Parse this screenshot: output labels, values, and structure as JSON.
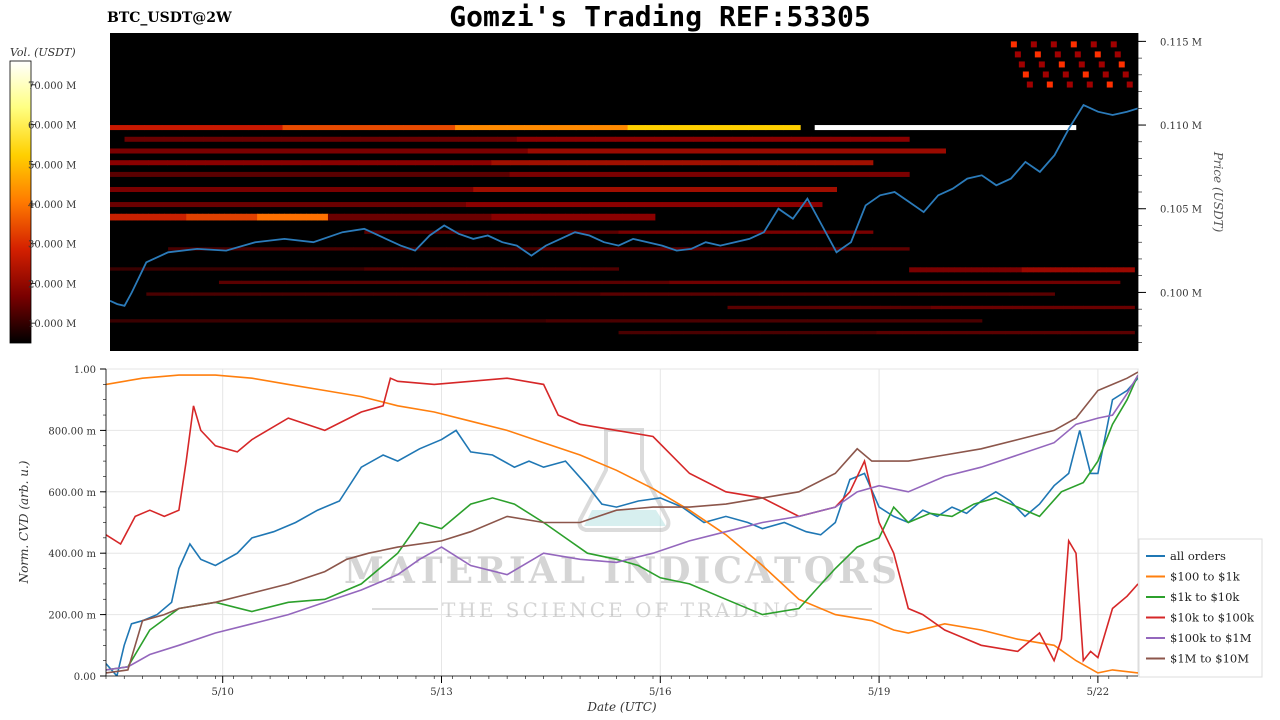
{
  "header": {
    "title": "Gomzi's Trading REF:53305",
    "symbol": "BTC_USDT@2W"
  },
  "colorbar": {
    "label": "Vol. (USDT)",
    "ticks": [
      "10.000 M",
      "20.000 M",
      "30.000 M",
      "40.000 M",
      "50.000 M",
      "60.000 M",
      "70.000 M"
    ],
    "range": [
      5000000,
      76000000
    ],
    "colormap": [
      "#000000",
      "#7a0000",
      "#d42000",
      "#ff7a00",
      "#ffd000",
      "#ffff80",
      "#ffffff"
    ]
  },
  "watermark": {
    "line1": "MATERIAL INDICATORS",
    "line2": "THE SCIENCE OF TRADING"
  },
  "chart_data": [
    {
      "type": "heatmap",
      "ylabel": "Price (USDT)",
      "ylim": [
        0.0965,
        0.1155
      ],
      "xlim": [
        "2025-05-08T09:00",
        "2025-05-22T12:00"
      ],
      "yticks": [
        "0.100 M",
        "0.105 M",
        "0.110 M",
        "0.115 M"
      ],
      "ytick_values": [
        0.1,
        0.105,
        0.11,
        0.115
      ],
      "line_color": "#2b7bba",
      "price_series": {
        "name": "price",
        "x_days": [
          0,
          0.1,
          0.2,
          0.3,
          0.5,
          0.8,
          1.2,
          1.6,
          2.0,
          2.4,
          2.8,
          3.2,
          3.5,
          3.8,
          4.0,
          4.2,
          4.4,
          4.6,
          4.8,
          5.0,
          5.2,
          5.4,
          5.6,
          5.8,
          6.0,
          6.2,
          6.4,
          6.6,
          6.8,
          7.0,
          7.2,
          7.4,
          7.6,
          7.8,
          8.0,
          8.2,
          8.4,
          8.6,
          8.8,
          9.0,
          9.2,
          9.4,
          9.6,
          9.8,
          10.0,
          10.2,
          10.4,
          10.6,
          10.8,
          11.0,
          11.2,
          11.4,
          11.6,
          11.8,
          12.0,
          12.2,
          12.4,
          12.6,
          12.8,
          13.0,
          13.2,
          13.4,
          13.6,
          13.8,
          14.0,
          14.15
        ],
        "y": [
          0.0995,
          0.0993,
          0.0992,
          0.1,
          0.1018,
          0.1024,
          0.1026,
          0.1025,
          0.103,
          0.1032,
          0.103,
          0.1036,
          0.1038,
          0.1032,
          0.1028,
          0.1025,
          0.1034,
          0.104,
          0.1035,
          0.1032,
          0.1034,
          0.103,
          0.1028,
          0.1022,
          0.1028,
          0.1032,
          0.1036,
          0.1034,
          0.103,
          0.1028,
          0.1032,
          0.103,
          0.1028,
          0.1025,
          0.1026,
          0.103,
          0.1028,
          0.103,
          0.1032,
          0.1036,
          0.105,
          0.1044,
          0.1056,
          0.104,
          0.1024,
          0.103,
          0.1052,
          0.1058,
          0.106,
          0.1054,
          0.1048,
          0.1058,
          0.1062,
          0.1068,
          0.107,
          0.1064,
          0.1068,
          0.1078,
          0.1072,
          0.1082,
          0.1098,
          0.1112,
          0.1108,
          0.1106,
          0.1108,
          0.111
        ]
      }
    },
    {
      "type": "line",
      "xlabel": "Date (UTC)",
      "ylabel": "Norm. CVD (arb. u.)",
      "xlim_days": [
        0,
        14.15
      ],
      "ylim": [
        0,
        1
      ],
      "xticks": [
        "5/10",
        "5/13",
        "5/16",
        "5/19",
        "5/22"
      ],
      "xtick_days": [
        1.6,
        4.6,
        7.6,
        10.6,
        13.6
      ],
      "yticks": [
        "0.00",
        "200.00 m",
        "400.00 m",
        "600.00 m",
        "800.00 m",
        "1.00"
      ],
      "ytick_values": [
        0,
        0.2,
        0.4,
        0.6,
        0.8,
        1.0
      ],
      "grid": true,
      "legend_position": "right",
      "series": [
        {
          "name": "all orders",
          "color": "#1f77b4",
          "x": [
            0,
            0.15,
            0.25,
            0.35,
            0.5,
            0.7,
            0.9,
            1.0,
            1.15,
            1.3,
            1.5,
            1.8,
            2.0,
            2.3,
            2.6,
            2.9,
            3.2,
            3.5,
            3.8,
            4.0,
            4.3,
            4.6,
            4.8,
            5.0,
            5.3,
            5.6,
            5.8,
            6.0,
            6.3,
            6.6,
            6.8,
            7.0,
            7.3,
            7.6,
            7.9,
            8.2,
            8.5,
            8.8,
            9.0,
            9.3,
            9.6,
            9.8,
            10.0,
            10.2,
            10.4,
            10.6,
            10.8,
            11.0,
            11.2,
            11.4,
            11.6,
            11.8,
            12.0,
            12.2,
            12.4,
            12.6,
            12.8,
            13.0,
            13.2,
            13.35,
            13.5,
            13.6,
            13.8,
            14.0,
            14.15
          ],
          "y": [
            0.04,
            0.0,
            0.1,
            0.17,
            0.18,
            0.2,
            0.24,
            0.35,
            0.43,
            0.38,
            0.36,
            0.4,
            0.45,
            0.47,
            0.5,
            0.54,
            0.57,
            0.68,
            0.72,
            0.7,
            0.74,
            0.77,
            0.8,
            0.73,
            0.72,
            0.68,
            0.7,
            0.68,
            0.7,
            0.62,
            0.56,
            0.55,
            0.57,
            0.58,
            0.55,
            0.5,
            0.52,
            0.5,
            0.48,
            0.5,
            0.47,
            0.46,
            0.5,
            0.64,
            0.66,
            0.55,
            0.52,
            0.5,
            0.54,
            0.52,
            0.55,
            0.53,
            0.57,
            0.6,
            0.57,
            0.52,
            0.56,
            0.62,
            0.66,
            0.8,
            0.66,
            0.66,
            0.9,
            0.93,
            0.97
          ]
        },
        {
          "name": "$100 to $1k",
          "color": "#ff7f0e",
          "x": [
            0,
            0.5,
            1.0,
            1.5,
            2.0,
            2.5,
            3.0,
            3.5,
            4.0,
            4.5,
            5.0,
            5.5,
            6.0,
            6.5,
            7.0,
            7.5,
            8.0,
            8.5,
            9.0,
            9.5,
            10.0,
            10.5,
            10.8,
            11.0,
            11.5,
            12.0,
            12.5,
            13.0,
            13.3,
            13.6,
            13.8,
            14.15
          ],
          "y": [
            0.95,
            0.97,
            0.98,
            0.98,
            0.97,
            0.95,
            0.93,
            0.91,
            0.88,
            0.86,
            0.83,
            0.8,
            0.76,
            0.72,
            0.67,
            0.61,
            0.54,
            0.46,
            0.36,
            0.25,
            0.2,
            0.18,
            0.15,
            0.14,
            0.17,
            0.15,
            0.12,
            0.1,
            0.05,
            0.01,
            0.02,
            0.01
          ]
        },
        {
          "name": "$1k to $10k",
          "color": "#2ca02c",
          "x": [
            0,
            0.3,
            0.6,
            1.0,
            1.5,
            2.0,
            2.5,
            3.0,
            3.5,
            4.0,
            4.3,
            4.6,
            5.0,
            5.3,
            5.6,
            6.0,
            6.3,
            6.6,
            7.0,
            7.3,
            7.6,
            8.0,
            8.5,
            9.0,
            9.5,
            10.0,
            10.3,
            10.6,
            10.8,
            11.0,
            11.3,
            11.6,
            11.9,
            12.2,
            12.5,
            12.8,
            13.1,
            13.4,
            13.6,
            13.8,
            14.0,
            14.15
          ],
          "y": [
            0.02,
            0.03,
            0.15,
            0.22,
            0.24,
            0.21,
            0.24,
            0.25,
            0.3,
            0.4,
            0.5,
            0.48,
            0.56,
            0.58,
            0.56,
            0.5,
            0.45,
            0.4,
            0.38,
            0.36,
            0.32,
            0.3,
            0.25,
            0.2,
            0.22,
            0.35,
            0.42,
            0.45,
            0.55,
            0.5,
            0.53,
            0.52,
            0.56,
            0.58,
            0.55,
            0.52,
            0.6,
            0.63,
            0.7,
            0.82,
            0.9,
            0.98
          ]
        },
        {
          "name": "$10k to $100k",
          "color": "#d62728",
          "x": [
            0,
            0.2,
            0.4,
            0.6,
            0.8,
            1.0,
            1.1,
            1.2,
            1.3,
            1.5,
            1.8,
            2.0,
            2.5,
            3.0,
            3.5,
            3.8,
            3.9,
            4.0,
            4.5,
            5.0,
            5.5,
            6.0,
            6.2,
            6.5,
            7.0,
            7.5,
            8.0,
            8.5,
            9.0,
            9.5,
            10.0,
            10.2,
            10.4,
            10.6,
            10.8,
            11.0,
            11.2,
            11.5,
            12.0,
            12.5,
            12.8,
            13.0,
            13.1,
            13.2,
            13.3,
            13.4,
            13.5,
            13.6,
            13.8,
            14.0,
            14.15
          ],
          "y": [
            0.46,
            0.43,
            0.52,
            0.54,
            0.52,
            0.54,
            0.7,
            0.88,
            0.8,
            0.75,
            0.73,
            0.77,
            0.84,
            0.8,
            0.86,
            0.88,
            0.97,
            0.96,
            0.95,
            0.96,
            0.97,
            0.95,
            0.85,
            0.82,
            0.8,
            0.78,
            0.66,
            0.6,
            0.58,
            0.52,
            0.55,
            0.6,
            0.7,
            0.5,
            0.4,
            0.22,
            0.2,
            0.15,
            0.1,
            0.08,
            0.14,
            0.05,
            0.12,
            0.44,
            0.4,
            0.05,
            0.08,
            0.06,
            0.22,
            0.26,
            0.3
          ]
        },
        {
          "name": "$100k to $1M",
          "color": "#9467bd",
          "x": [
            0,
            0.3,
            0.6,
            1.0,
            1.5,
            2.0,
            2.5,
            3.0,
            3.5,
            4.0,
            4.3,
            4.6,
            5.0,
            5.5,
            6.0,
            6.5,
            7.0,
            7.5,
            8.0,
            8.5,
            9.0,
            9.5,
            10.0,
            10.3,
            10.6,
            11.0,
            11.5,
            12.0,
            12.5,
            13.0,
            13.3,
            13.6,
            13.8,
            14.0,
            14.15
          ],
          "y": [
            0.02,
            0.03,
            0.07,
            0.1,
            0.14,
            0.17,
            0.2,
            0.24,
            0.28,
            0.33,
            0.38,
            0.42,
            0.36,
            0.33,
            0.4,
            0.38,
            0.37,
            0.4,
            0.44,
            0.47,
            0.5,
            0.52,
            0.55,
            0.6,
            0.62,
            0.6,
            0.65,
            0.68,
            0.72,
            0.76,
            0.82,
            0.84,
            0.85,
            0.92,
            0.98
          ]
        },
        {
          "name": "$1M to $10M",
          "color": "#8c564b",
          "x": [
            0,
            0.3,
            0.5,
            0.8,
            1.0,
            1.5,
            2.0,
            2.5,
            3.0,
            3.3,
            3.6,
            4.0,
            4.6,
            5.0,
            5.5,
            6.0,
            6.5,
            7.0,
            7.5,
            8.0,
            8.5,
            9.0,
            9.5,
            10.0,
            10.3,
            10.5,
            11.0,
            11.5,
            12.0,
            12.5,
            13.0,
            13.3,
            13.6,
            13.8,
            14.0,
            14.15
          ],
          "y": [
            0.01,
            0.02,
            0.18,
            0.2,
            0.22,
            0.24,
            0.27,
            0.3,
            0.34,
            0.38,
            0.4,
            0.42,
            0.44,
            0.47,
            0.52,
            0.5,
            0.5,
            0.54,
            0.55,
            0.55,
            0.56,
            0.58,
            0.6,
            0.66,
            0.74,
            0.7,
            0.7,
            0.72,
            0.74,
            0.77,
            0.8,
            0.84,
            0.93,
            0.95,
            0.97,
            0.99
          ]
        }
      ]
    }
  ]
}
